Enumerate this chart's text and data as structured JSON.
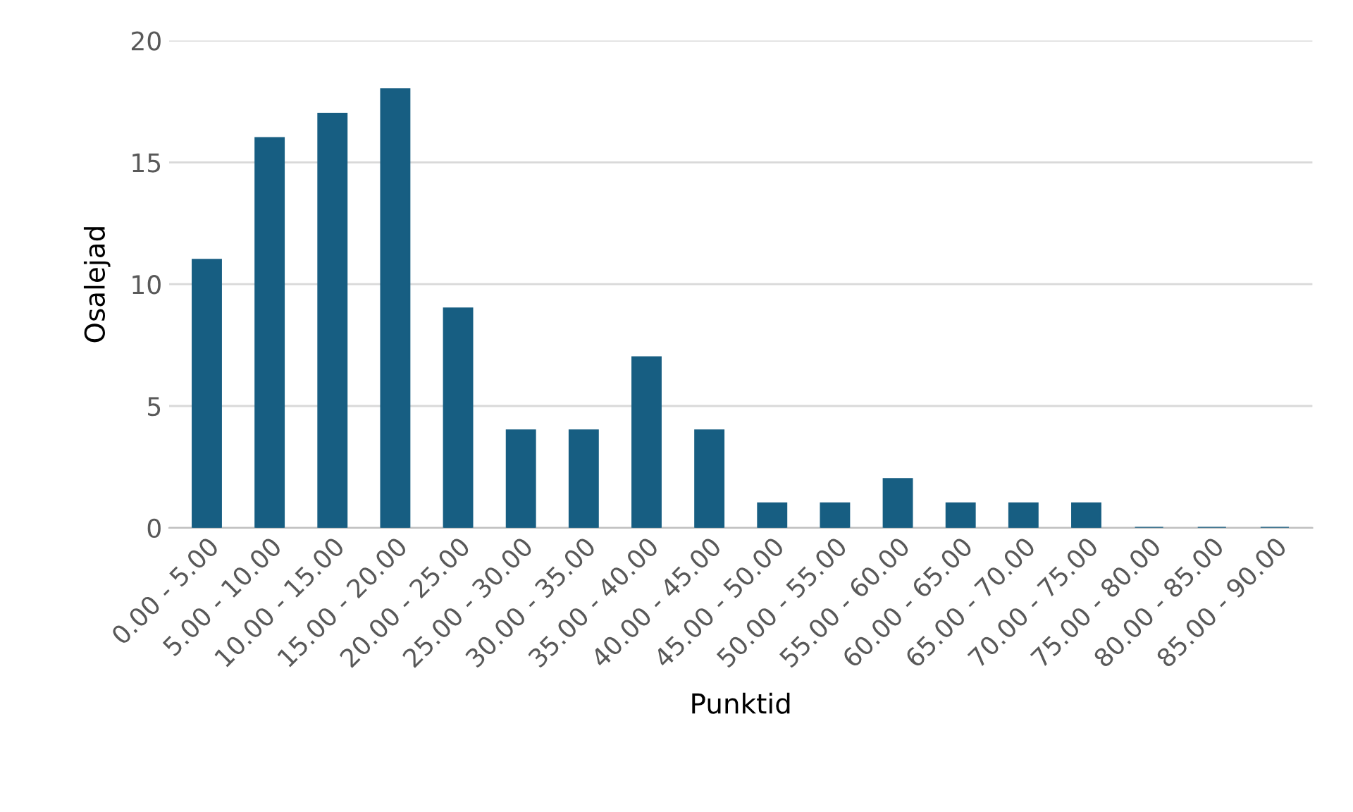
{
  "chart_data": {
    "type": "bar",
    "xlabel": "Punktid",
    "ylabel": "Osalejad",
    "categories": [
      "0.00 - 5.00",
      "5.00 - 10.00",
      "10.00 - 15.00",
      "15.00 - 20.00",
      "20.00 - 25.00",
      "25.00 - 30.00",
      "30.00 - 35.00",
      "35.00 - 40.00",
      "40.00 - 45.00",
      "45.00 - 50.00",
      "50.00 - 55.00",
      "55.00 - 60.00",
      "60.00 - 65.00",
      "65.00 - 70.00",
      "70.00 - 75.00",
      "75.00 - 80.00",
      "80.00 - 85.00",
      "85.00 - 90.00"
    ],
    "values": [
      11,
      16,
      17,
      18,
      9,
      4,
      4,
      7,
      4,
      1,
      1,
      2,
      1,
      1,
      1,
      0,
      0,
      0
    ],
    "color": "#175e82",
    "ylim": [
      0,
      20
    ],
    "yticks": [
      0,
      5,
      10,
      15,
      20
    ],
    "grid": "y"
  }
}
